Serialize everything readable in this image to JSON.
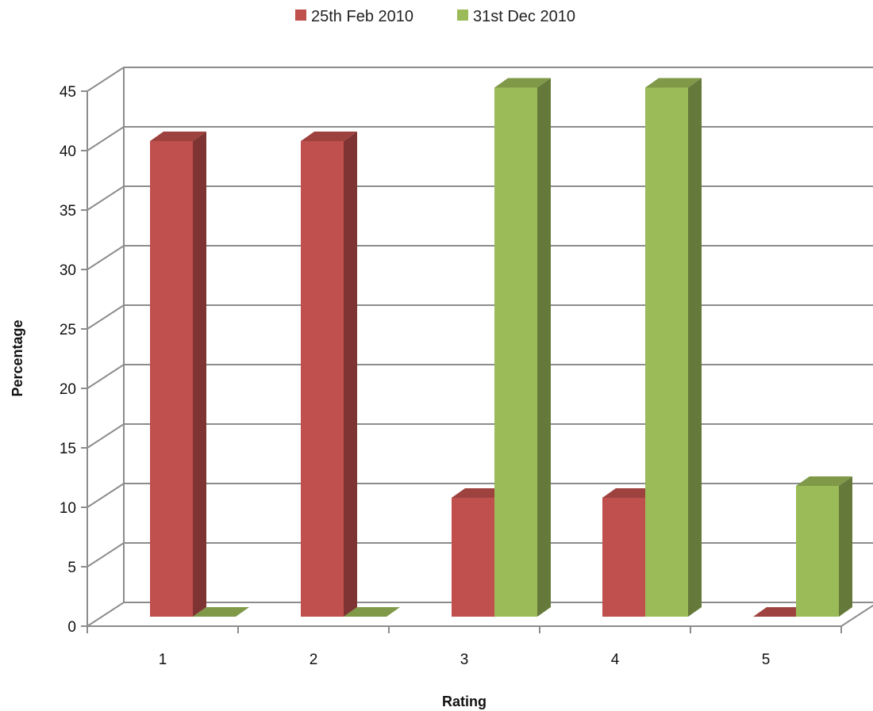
{
  "chart_data": {
    "type": "bar",
    "subtype": "3d-clustered-column",
    "categories": [
      "1",
      "2",
      "3",
      "4",
      "5"
    ],
    "series": [
      {
        "name": "25th Feb 2010",
        "values": [
          40,
          40,
          10,
          10,
          0
        ],
        "color": "#c0504d"
      },
      {
        "name": "31st Dec 2010",
        "values": [
          0,
          0,
          44.5,
          44.5,
          11
        ],
        "color": "#9bbb59"
      }
    ],
    "xlabel": "Rating",
    "ylabel": "Percentage",
    "ylim": [
      0,
      45
    ],
    "yticks": [
      0,
      5,
      10,
      15,
      20,
      25,
      30,
      35,
      40,
      45
    ],
    "grid": true,
    "legend": "top-center"
  }
}
